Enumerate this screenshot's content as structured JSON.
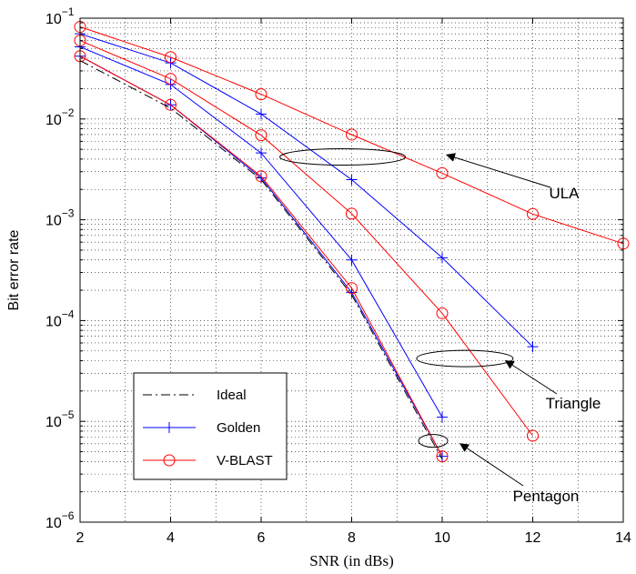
{
  "chart_data": {
    "type": "line",
    "xlabel": "SNR (in dBs)",
    "ylabel": "Bit error rate",
    "xlim": [
      2,
      14
    ],
    "ylim": [
      1e-06,
      0.1
    ],
    "yscale": "log",
    "grid": "dotted, major and minor",
    "xticks": [
      "2",
      "4",
      "6",
      "8",
      "10",
      "12",
      "14"
    ],
    "yticks": [
      {
        "base": "10",
        "exp": "−6"
      },
      {
        "base": "10",
        "exp": "−5"
      },
      {
        "base": "10",
        "exp": "−4"
      },
      {
        "base": "10",
        "exp": "−3"
      },
      {
        "base": "10",
        "exp": "−2"
      },
      {
        "base": "10",
        "exp": "−1"
      }
    ],
    "legend": {
      "position": "lower-left",
      "entries": [
        {
          "label": "Ideal",
          "color": "#000000",
          "style": "dash-dot",
          "marker": "none"
        },
        {
          "label": "Golden",
          "color": "#0000ff",
          "style": "solid",
          "marker": "plus"
        },
        {
          "label": "V-BLAST",
          "color": "#ff0000",
          "style": "solid",
          "marker": "circle"
        }
      ]
    },
    "series": [
      {
        "group": "ULA",
        "kind": "Golden",
        "color": "#0000ff",
        "marker": "plus",
        "dash": "solid",
        "x": [
          2,
          4,
          6,
          8,
          10,
          12
        ],
        "y": [
          0.07,
          0.036,
          0.0112,
          0.0025,
          0.00042,
          5.5e-05
        ]
      },
      {
        "group": "ULA",
        "kind": "V-BLAST",
        "color": "#ff0000",
        "marker": "circle",
        "dash": "solid",
        "x": [
          2,
          4,
          6,
          8,
          10,
          12,
          14
        ],
        "y": [
          0.082,
          0.041,
          0.0176,
          0.007,
          0.0029,
          0.00114,
          0.00058
        ]
      },
      {
        "group": "Triangle",
        "kind": "Golden",
        "color": "#0000ff",
        "marker": "plus",
        "dash": "solid",
        "x": [
          2,
          4,
          6,
          8,
          10
        ],
        "y": [
          0.052,
          0.022,
          0.0046,
          0.0004,
          1.1e-05
        ]
      },
      {
        "group": "Triangle",
        "kind": "V-BLAST",
        "color": "#ff0000",
        "marker": "circle",
        "dash": "solid",
        "x": [
          2,
          4,
          6,
          8,
          10,
          12
        ],
        "y": [
          0.06,
          0.025,
          0.0069,
          0.00115,
          0.000118,
          7.2e-06
        ]
      },
      {
        "group": "Pentagon",
        "kind": "Golden",
        "color": "#0000ff",
        "marker": "plus",
        "dash": "solid",
        "x": [
          2,
          4,
          6,
          8,
          10
        ],
        "y": [
          0.042,
          0.0138,
          0.0026,
          0.00019,
          4.5e-06
        ]
      },
      {
        "group": "Pentagon",
        "kind": "V-BLAST",
        "color": "#ff0000",
        "marker": "circle",
        "dash": "solid",
        "x": [
          2,
          4,
          6,
          8,
          10
        ],
        "y": [
          0.042,
          0.0138,
          0.0027,
          0.00021,
          4.5e-06
        ]
      },
      {
        "group": "Pentagon",
        "kind": "Ideal",
        "color": "#000000",
        "marker": "none",
        "dash": "dash-dot",
        "x": [
          2,
          4,
          6,
          8,
          10
        ],
        "y": [
          0.038,
          0.0128,
          0.0025,
          0.00018,
          4.2e-06
        ]
      }
    ],
    "annotations": [
      {
        "text": "ULA",
        "ellipse_center": [
          7.8,
          0.0042
        ],
        "arrow_tip": [
          10.1,
          0.0044
        ]
      },
      {
        "text": "Triangle",
        "ellipse_center": [
          10.5,
          4.2e-05
        ],
        "arrow_tip": [
          11.4,
          4e-05
        ]
      },
      {
        "text": "Pentagon",
        "ellipse_center": [
          9.8,
          6.4e-06
        ],
        "arrow_tip": [
          10.4,
          6e-06
        ]
      }
    ]
  }
}
